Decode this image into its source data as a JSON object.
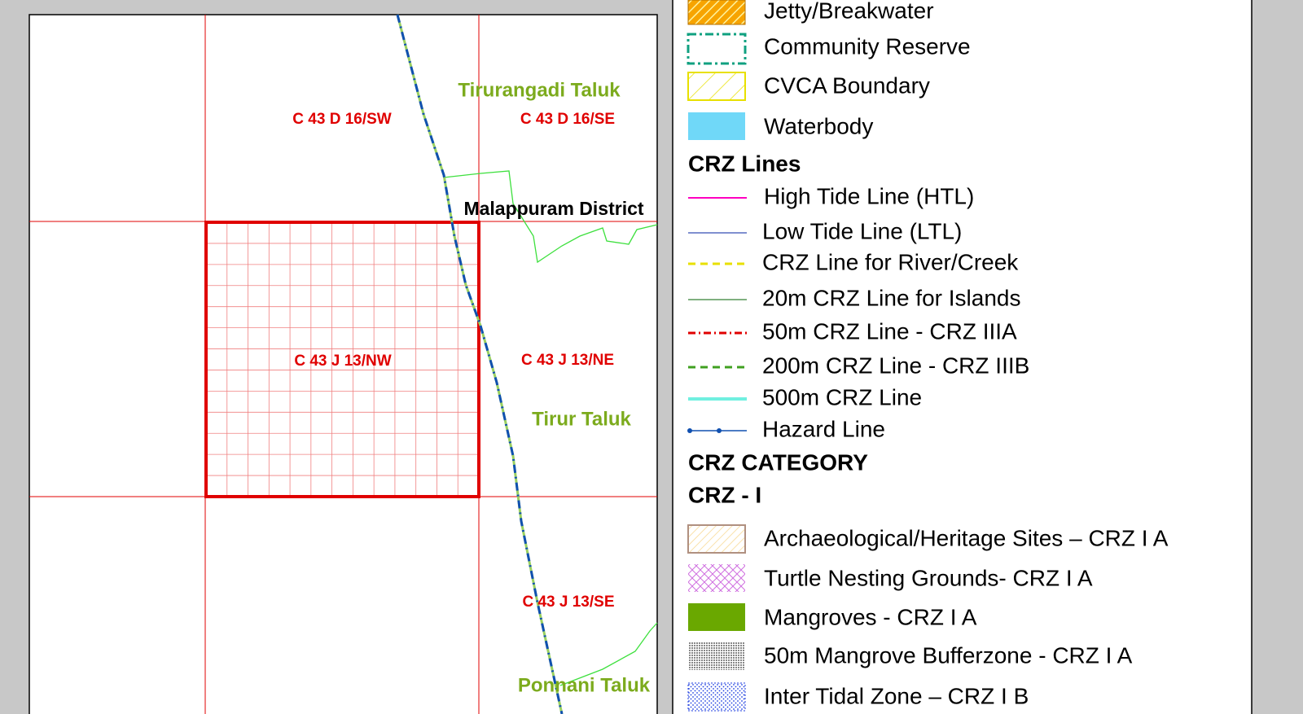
{
  "map": {
    "labels": [
      "C 43 D 16/SW",
      "C 43 D 16/SE",
      "Tirurangadi Taluk",
      "Malappuram District",
      "C 43 J 13/NW",
      "C 43 J 13/NE",
      "Tirur Taluk",
      "C 43 J 13/SE",
      "Ponnani Taluk"
    ]
  },
  "legend": {
    "items": [
      {
        "label": "Jetty/Breakwater"
      },
      {
        "label": "Community Reserve"
      },
      {
        "label": "CVCA Boundary"
      },
      {
        "label": "Waterbody"
      },
      {
        "heading": "CRZ Lines"
      },
      {
        "label": "High Tide Line (HTL)"
      },
      {
        "label": "Low Tide Line (LTL)"
      },
      {
        "label": "CRZ Line for River/Creek"
      },
      {
        "label": "20m CRZ Line for Islands"
      },
      {
        "label": "50m CRZ Line - CRZ IIIA"
      },
      {
        "label": "200m CRZ Line - CRZ IIIB"
      },
      {
        "label": "500m CRZ Line"
      },
      {
        "label": "Hazard Line"
      },
      {
        "heading": "CRZ CATEGORY"
      },
      {
        "heading": "CRZ - I"
      },
      {
        "label": "Archaeological/Heritage Sites – CRZ I A"
      },
      {
        "label": "Turtle Nesting Grounds- CRZ I A"
      },
      {
        "label": "Mangroves - CRZ  I A"
      },
      {
        "label": "50m Mangrove Bufferzone - CRZ I A"
      },
      {
        "label": "Inter Tidal Zone – CRZ I B"
      }
    ]
  }
}
